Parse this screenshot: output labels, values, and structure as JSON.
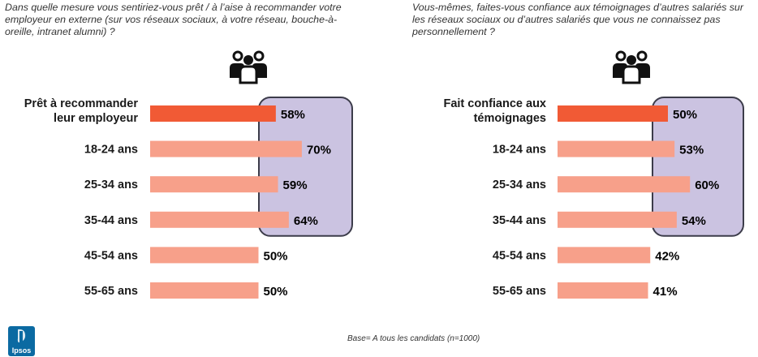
{
  "charts": {
    "left": {
      "question": "Dans quelle mesure vous sentiriez-vous prêt / à l’aise à recommander votre employeur en externe (sur vos réseaux sociaux, à votre réseau, bouche-à-oreille, intranet alumni) ?",
      "icon": "people-group-icon"
    },
    "right": {
      "question": "Vous-mêmes, faites-vous confiance aux témoignages d’autres salariés sur les réseaux sociaux ou d’autres salariés que vous ne connaissez pas personnellement ?",
      "icon": "people-group-icon"
    }
  },
  "chart_data": [
    {
      "type": "bar",
      "orientation": "horizontal",
      "categories": [
        "Prêt à recommander leur employeur",
        "18-24 ans",
        "25-34 ans",
        "35-44 ans",
        "45-54 ans",
        "55-65 ans"
      ],
      "display_labels": [
        [
          "Prêt à recommander",
          "leur employeur"
        ],
        [
          "18-24 ans"
        ],
        [
          "25-34 ans"
        ],
        [
          "35-44 ans"
        ],
        [
          "45-54 ans"
        ],
        [
          "55-65 ans"
        ]
      ],
      "values": [
        58,
        70,
        59,
        64,
        50,
        50
      ],
      "value_labels": [
        "58%",
        "70%",
        "59%",
        "64%",
        "50%",
        "50%"
      ],
      "unit": "%",
      "highlight_first_group": 4,
      "colors": {
        "total": "#f15a35",
        "segment": "#f7a08a",
        "highlight_box": "#cbc3e1",
        "highlight_border": "#3c3c4a"
      }
    },
    {
      "type": "bar",
      "orientation": "horizontal",
      "categories": [
        "Fait confiance aux témoignages",
        "18-24 ans",
        "25-34 ans",
        "35-44 ans",
        "45-54 ans",
        "55-65 ans"
      ],
      "display_labels": [
        [
          "Fait confiance aux",
          "témoignages"
        ],
        [
          "18-24 ans"
        ],
        [
          "25-34 ans"
        ],
        [
          "35-44 ans"
        ],
        [
          "45-54 ans"
        ],
        [
          "55-65 ans"
        ]
      ],
      "values": [
        50,
        53,
        60,
        54,
        42,
        41
      ],
      "value_labels": [
        "50%",
        "53%",
        "60%",
        "54%",
        "42%",
        "41%"
      ],
      "unit": "%",
      "highlight_first_group": 4,
      "colors": {
        "total": "#f15a35",
        "segment": "#f7a08a",
        "highlight_box": "#cbc3e1",
        "highlight_border": "#3c3c4a"
      }
    }
  ],
  "footer": {
    "base_note": "Base= A tous les candidats  (n=1000)",
    "logo_text": "Ipsos",
    "logo_color": "#0b6aa2"
  }
}
